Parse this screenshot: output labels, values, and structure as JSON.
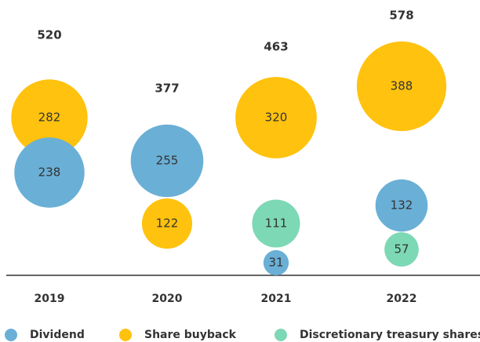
{
  "chart_data": {
    "type": "bubble",
    "categories": [
      "2019",
      "2020",
      "2021",
      "2022"
    ],
    "totals": [
      520,
      377,
      463,
      578
    ],
    "series": [
      {
        "name": "Dividend",
        "color": "#6aafd6",
        "values": [
          238,
          255,
          31,
          132
        ]
      },
      {
        "name": "Share buyback",
        "color": "#ffc20e",
        "values": [
          282,
          122,
          320,
          388
        ]
      },
      {
        "name": "Discretionary treasury shares*",
        "color": "#7dd8b5",
        "values": [
          null,
          null,
          111,
          57
        ]
      }
    ]
  }
}
